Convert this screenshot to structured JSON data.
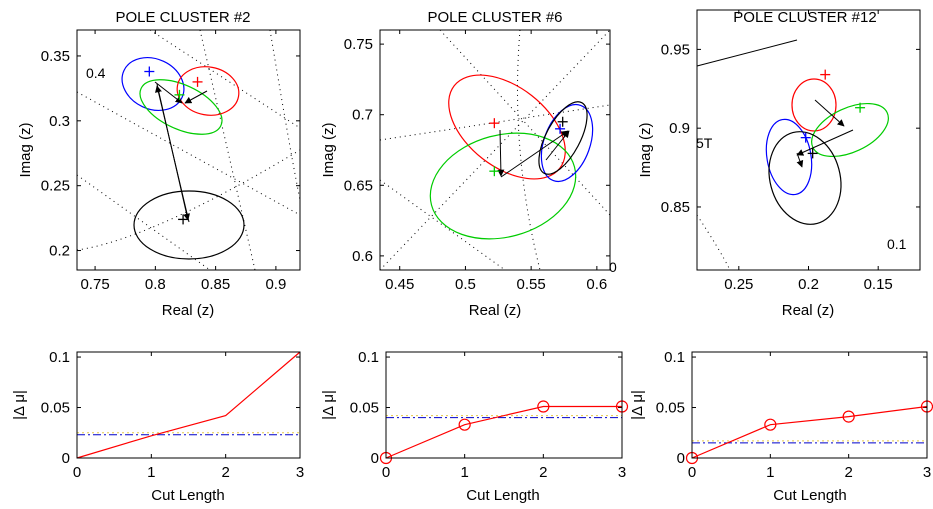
{
  "figure": {
    "ylabel_top": "Imag (z)",
    "xlabel_top": "Real (z)",
    "ylabel_bottom": "|Δ μ|",
    "xlabel_bottom": "Cut Length"
  },
  "chart_data": [
    {
      "type": "scatter",
      "title": "POLE CLUSTER #2",
      "xlabel": "Real (z)",
      "ylabel": "Imag (z)",
      "xlim": [
        0.735,
        0.92
      ],
      "ylim": [
        0.185,
        0.37
      ],
      "xticks": [
        "0.75",
        "0.8",
        "0.85",
        "0.9"
      ],
      "yticks": [
        "0.2",
        "0.25",
        "0.3",
        "0.35"
      ],
      "annotations": [
        "0.4"
      ],
      "grid": "dotted radial/arc",
      "poles": [
        {
          "color": "#0000ff",
          "x": 0.795,
          "y": 0.338
        },
        {
          "color": "#00cc00",
          "x": 0.82,
          "y": 0.32
        },
        {
          "color": "#ff0000",
          "x": 0.835,
          "y": 0.33
        },
        {
          "color": "#000000",
          "x": 0.823,
          "y": 0.224
        }
      ]
    },
    {
      "type": "scatter",
      "title": "POLE CLUSTER #6",
      "xlabel": "Real (z)",
      "ylabel": "Imag (z)",
      "xlim": [
        0.435,
        0.61
      ],
      "ylim": [
        0.59,
        0.76
      ],
      "xticks": [
        "0.45",
        "0.5",
        "0.55",
        "0.6"
      ],
      "yticks": [
        "0.6",
        "0.65",
        "0.7",
        "0.75"
      ],
      "annotations": [
        "0"
      ],
      "grid": "dotted radial/arc",
      "poles": [
        {
          "color": "#ff0000",
          "x": 0.522,
          "y": 0.694
        },
        {
          "color": "#00cc00",
          "x": 0.522,
          "y": 0.66
        },
        {
          "color": "#0000ff",
          "x": 0.572,
          "y": 0.69
        },
        {
          "color": "#000000",
          "x": 0.574,
          "y": 0.695
        }
      ]
    },
    {
      "type": "scatter",
      "title": "POLE CLUSTER #12",
      "xlabel": "Real (z)",
      "ylabel": "Imag (z)",
      "xlim": [
        0.28,
        0.12
      ],
      "ylim": [
        0.81,
        0.975
      ],
      "xticks": [
        "0.25",
        "0.2",
        "0.15"
      ],
      "yticks": [
        "0.85",
        "0.9",
        "0.95"
      ],
      "annotations": [
        "5T",
        "0.1"
      ],
      "grid": "dotted radial/arc",
      "poles": [
        {
          "color": "#ff0000",
          "x": 0.188,
          "y": 0.934
        },
        {
          "color": "#00cc00",
          "x": 0.163,
          "y": 0.913
        },
        {
          "color": "#0000ff",
          "x": 0.202,
          "y": 0.894
        },
        {
          "color": "#000000",
          "x": 0.197,
          "y": 0.884
        }
      ]
    },
    {
      "type": "line",
      "xlabel": "Cut Length",
      "ylabel": "|Δ μ|",
      "x": [
        0,
        1,
        2,
        3
      ],
      "xlim": [
        0,
        3
      ],
      "ylim": [
        0,
        0.105
      ],
      "xticks": [
        "0",
        "1",
        "2",
        "3"
      ],
      "yticks": [
        "0",
        "0.05",
        "0.1"
      ],
      "markers": false,
      "values": [
        0,
        0.022,
        0.042,
        0.105
      ],
      "threshold": 0.023
    },
    {
      "type": "line",
      "xlabel": "Cut Length",
      "ylabel": "|Δ μ|",
      "x": [
        0,
        1,
        2,
        3
      ],
      "xlim": [
        0,
        3
      ],
      "ylim": [
        0,
        0.105
      ],
      "xticks": [
        "0",
        "1",
        "2",
        "3"
      ],
      "yticks": [
        "0",
        "0.05",
        "0.1"
      ],
      "markers": true,
      "values": [
        0,
        0.033,
        0.051,
        0.051
      ],
      "threshold": 0.04
    },
    {
      "type": "line",
      "xlabel": "Cut Length",
      "ylabel": "|Δ μ|",
      "x": [
        0,
        1,
        2,
        3
      ],
      "xlim": [
        0,
        3
      ],
      "ylim": [
        0,
        0.105
      ],
      "xticks": [
        "0",
        "1",
        "2",
        "3"
      ],
      "yticks": [
        "0",
        "0.05",
        "0.1"
      ],
      "markers": true,
      "values": [
        0,
        0.033,
        0.041,
        0.051
      ],
      "threshold": 0.015
    }
  ]
}
